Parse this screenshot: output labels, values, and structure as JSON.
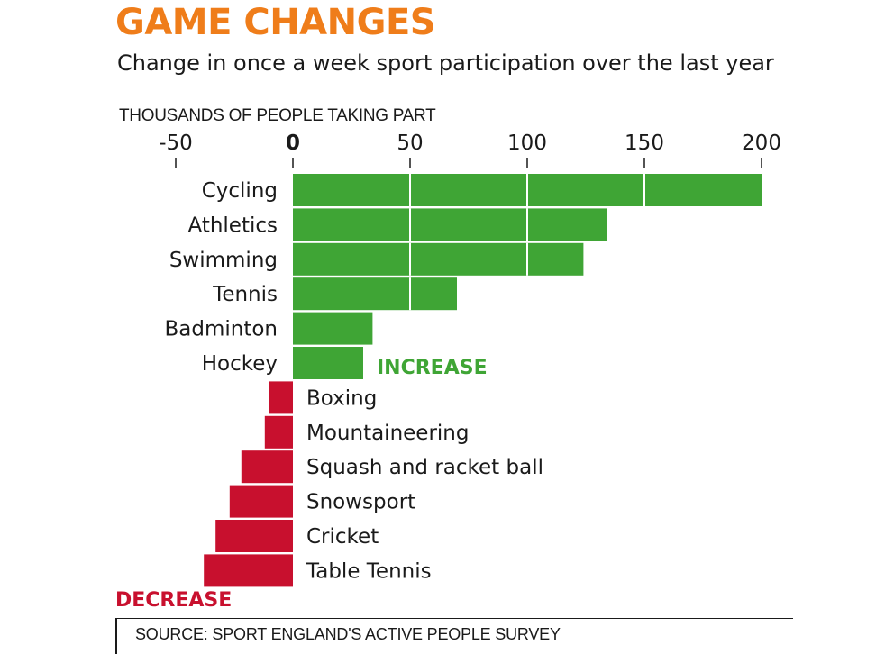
{
  "title": "GAME CHANGES",
  "subtitle": "Change in once a week sport participation over the last year",
  "axis_caption": "THOUSANDS OF PEOPLE TAKING PART",
  "annotations": {
    "increase": "INCREASE",
    "decrease": "DECREASE"
  },
  "source": "SOURCE: SPORT ENGLAND'S ACTIVE PEOPLE SURVEY",
  "colors": {
    "title": "#ef7d1a",
    "increase": "#3fa535",
    "decrease": "#c8102e",
    "text": "#1a1a1a"
  },
  "chart_data": {
    "type": "bar",
    "orientation": "horizontal",
    "title": "GAME CHANGES",
    "subtitle": "Change in once a week sport participation over the last year",
    "xlabel": "THOUSANDS OF PEOPLE TAKING PART",
    "xlim": [
      -50,
      200
    ],
    "xticks": [
      -50,
      0,
      50,
      100,
      150,
      200
    ],
    "xtick_labels": [
      "-50",
      "0",
      "50",
      "100",
      "150",
      "200"
    ],
    "categories": [
      "Cycling",
      "Athletics",
      "Swimming",
      "Tennis",
      "Badminton",
      "Hockey",
      "Boxing",
      "Mountaineering",
      "Squash and racket ball",
      "Snowsport",
      "Cricket",
      "Table Tennis"
    ],
    "values": [
      200,
      134,
      124,
      70,
      34,
      30,
      -10,
      -12,
      -22,
      -27,
      -33,
      -38
    ],
    "grid": false
  }
}
